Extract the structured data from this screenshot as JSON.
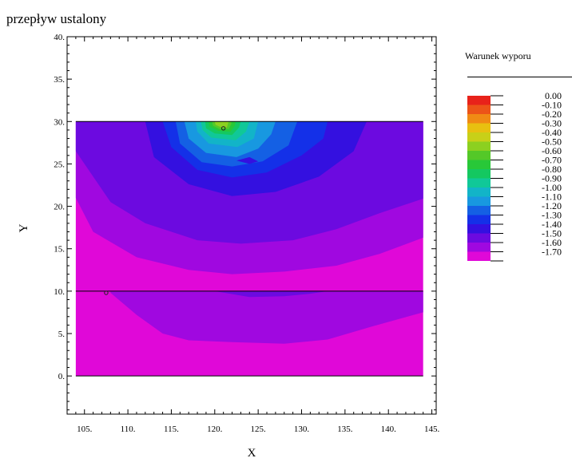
{
  "chart_data": {
    "type": "contour",
    "title": "przepływ ustalony",
    "xlabel": "X",
    "ylabel": "Y",
    "xlim": [
      103,
      145.5
    ],
    "ylim": [
      -4.5,
      40
    ],
    "x_ticks": [
      105,
      110,
      115,
      120,
      125,
      130,
      135,
      140,
      145
    ],
    "y_ticks": [
      0,
      5,
      10,
      15,
      20,
      25,
      30,
      35,
      40
    ],
    "x_tick_labels": [
      "105.",
      "110.",
      "115.",
      "120.",
      "125.",
      "130.",
      "135.",
      "140.",
      "145."
    ],
    "y_tick_labels": [
      "0.",
      "5.",
      "10.",
      "15.",
      "20.",
      "25.",
      "30.",
      "35.",
      "40."
    ],
    "domain": {
      "x": [
        104,
        144
      ],
      "y": [
        0,
        30
      ]
    },
    "layer_boundary_y": 10,
    "grid": false,
    "legend": {
      "title": "Warunek wyporu",
      "placement": "right",
      "levels": [
        {
          "label": "0.00",
          "color": "#e8221a"
        },
        {
          "label": "-0.10",
          "color": "#ec5418"
        },
        {
          "label": "-0.20",
          "color": "#f08a14"
        },
        {
          "label": "-0.30",
          "color": "#e8c010"
        },
        {
          "label": "-0.40",
          "color": "#c8d018"
        },
        {
          "label": "-0.50",
          "color": "#8cd020"
        },
        {
          "label": "-0.60",
          "color": "#54c828"
        },
        {
          "label": "-0.70",
          "color": "#28c838"
        },
        {
          "label": "-0.80",
          "color": "#14c860"
        },
        {
          "label": "-0.90",
          "color": "#10c898"
        },
        {
          "label": "-1.00",
          "color": "#12b4c8"
        },
        {
          "label": "-1.10",
          "color": "#1898e0"
        },
        {
          "label": "-1.20",
          "color": "#1460e4"
        },
        {
          "label": "-1.30",
          "color": "#1430e8"
        },
        {
          "label": "-1.40",
          "color": "#3410e0"
        },
        {
          "label": "-1.50",
          "color": "#6c0ae0"
        },
        {
          "label": "-1.60",
          "color": "#a008e0"
        },
        {
          "label": "-1.70",
          "color": "#e008d8"
        }
      ]
    },
    "contour_bands": [
      {
        "level": "-1.60",
        "polygon": [
          [
            104,
            21
          ],
          [
            106,
            17
          ],
          [
            111,
            14
          ],
          [
            117,
            12.5
          ],
          [
            122,
            12
          ],
          [
            128,
            12.3
          ],
          [
            134,
            13
          ],
          [
            139,
            14.4
          ],
          [
            144,
            16.3
          ],
          [
            144,
            30
          ],
          [
            104,
            30
          ]
        ]
      },
      {
        "level": "-1.50",
        "polygon": [
          [
            108,
            20.5
          ],
          [
            112,
            18
          ],
          [
            118,
            16
          ],
          [
            123,
            15.6
          ],
          [
            129,
            16
          ],
          [
            134,
            17.3
          ],
          [
            139,
            19.2
          ],
          [
            144,
            20.9
          ],
          [
            144,
            30
          ],
          [
            104,
            30
          ],
          [
            104,
            26.5
          ]
        ]
      },
      {
        "level": "-1.40",
        "polygon": [
          [
            113,
            25.8
          ],
          [
            117,
            22.6
          ],
          [
            122,
            21.2
          ],
          [
            127,
            21.7
          ],
          [
            132,
            23.5
          ],
          [
            136,
            26.5
          ],
          [
            137.5,
            30
          ],
          [
            112,
            30
          ]
        ]
      },
      {
        "level": "-1.30",
        "polygon": [
          [
            115,
            27
          ],
          [
            118,
            24.3
          ],
          [
            122,
            23.4
          ],
          [
            126,
            24
          ],
          [
            130,
            26
          ],
          [
            132.5,
            28
          ],
          [
            133,
            30
          ],
          [
            114,
            30
          ]
        ]
      },
      {
        "level": "-1.20",
        "polygon": [
          [
            116,
            27.4
          ],
          [
            118.5,
            25.2
          ],
          [
            122,
            24.7
          ],
          [
            125.5,
            25.3
          ],
          [
            128.5,
            27.2
          ],
          [
            129.5,
            30
          ],
          [
            115.5,
            30
          ]
        ]
      },
      {
        "level": "-1.10",
        "polygon": [
          [
            117,
            28
          ],
          [
            119,
            26.3
          ],
          [
            122.5,
            25.8
          ],
          [
            125,
            26.8
          ],
          [
            126.5,
            28.5
          ],
          [
            127,
            30
          ],
          [
            116.5,
            30
          ]
        ]
      },
      {
        "level": "-1.00",
        "polygon": [
          [
            118,
            28.8
          ],
          [
            119.3,
            27.4
          ],
          [
            122.6,
            27
          ],
          [
            124.5,
            28
          ],
          [
            125,
            30
          ],
          [
            117.8,
            30
          ]
        ]
      },
      {
        "level": "-0.90",
        "polygon": [
          [
            118.6,
            29
          ],
          [
            119.6,
            28.1
          ],
          [
            122.4,
            27.8
          ],
          [
            123.6,
            28.8
          ],
          [
            124,
            30
          ],
          [
            118.4,
            30
          ]
        ]
      },
      {
        "level": "-0.80",
        "polygon": [
          [
            119,
            29.2
          ],
          [
            120,
            28.6
          ],
          [
            122,
            28.4
          ],
          [
            122.8,
            29.3
          ],
          [
            123,
            30
          ],
          [
            118.9,
            30
          ]
        ]
      },
      {
        "level": "-0.70",
        "polygon": [
          [
            119.4,
            29.4
          ],
          [
            120.4,
            28.9
          ],
          [
            121.8,
            28.8
          ],
          [
            122.3,
            29.5
          ],
          [
            122.4,
            30
          ],
          [
            119.3,
            30
          ]
        ]
      },
      {
        "level": "-0.60",
        "polygon": [
          [
            119.8,
            29.5
          ],
          [
            120.6,
            29.1
          ],
          [
            121.6,
            29.1
          ],
          [
            121.9,
            29.7
          ],
          [
            121.9,
            30
          ],
          [
            119.7,
            30
          ]
        ]
      },
      {
        "level": "-0.50",
        "polygon": [
          [
            120.1,
            29.6
          ],
          [
            120.8,
            29.3
          ],
          [
            121.4,
            29.3
          ],
          [
            121.6,
            30
          ],
          [
            120,
            30
          ]
        ]
      },
      {
        "level": "-1.60",
        "polygon": [
          [
            108,
            9.8
          ],
          [
            111,
            7.2
          ],
          [
            114,
            5
          ],
          [
            117,
            4.2
          ],
          [
            122,
            4
          ],
          [
            128,
            3.8
          ],
          [
            133,
            4.3
          ],
          [
            138,
            5.8
          ],
          [
            144,
            7.5
          ],
          [
            144,
            10
          ],
          [
            108,
            10
          ]
        ]
      },
      {
        "level": "-1.50",
        "polygon": [
          [
            120,
            10
          ],
          [
            124,
            9.3
          ],
          [
            128,
            9.4
          ],
          [
            131,
            9.7
          ],
          [
            133,
            10
          ]
        ]
      },
      {
        "level": "-1.40",
        "polygon": [
          [
            122.5,
            25.4
          ],
          [
            124,
            25
          ],
          [
            125,
            25.3
          ],
          [
            124,
            25.8
          ]
        ]
      }
    ],
    "point_markers": [
      {
        "x": 121,
        "y": 29.2
      },
      {
        "x": 107.5,
        "y": 9.8
      }
    ]
  }
}
